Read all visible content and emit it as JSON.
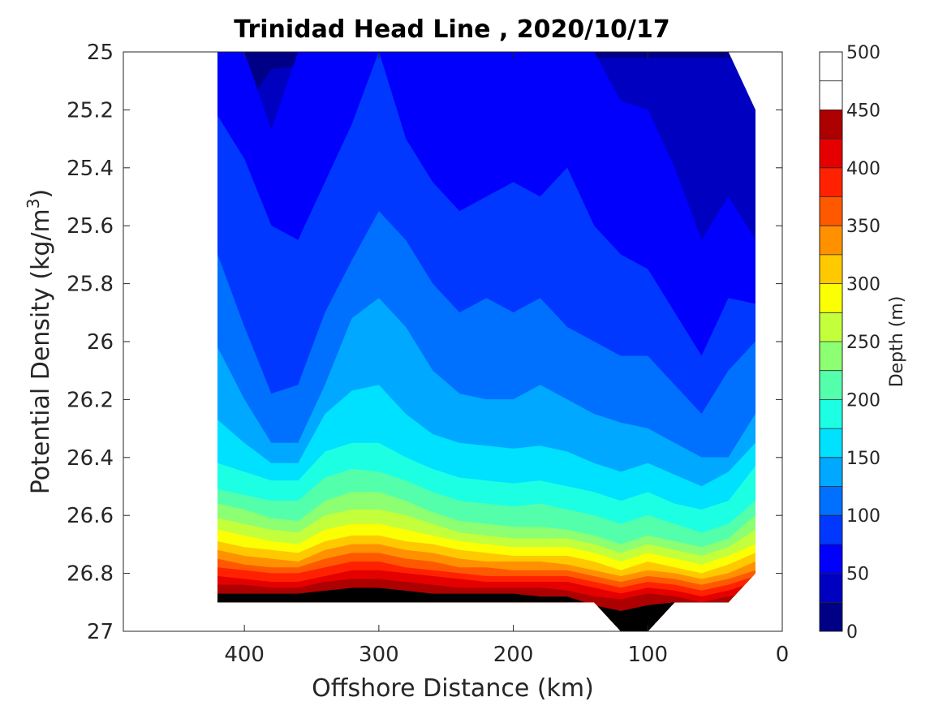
{
  "chart_data": {
    "type": "contour",
    "title": "Trinidad Head Line , 2020/10/17",
    "xlabel": "Offshore Distance (km)",
    "ylabel": "Potential Density (kg/m",
    "ylabel_sup": "3",
    "ylabel_close": ")",
    "xlim": [
      490,
      0
    ],
    "ylim": [
      25,
      27
    ],
    "x_reversed": true,
    "y_reversed": true,
    "xticks": [
      400,
      300,
      200,
      100,
      0
    ],
    "yticks": [
      "25",
      "25.2",
      "25.4",
      "25.6",
      "25.8",
      "26",
      "26.2",
      "26.4",
      "26.6",
      "26.8",
      "27"
    ],
    "colorbar": {
      "label": "Depth (m)",
      "ticks": [
        0,
        50,
        100,
        150,
        200,
        250,
        300,
        350,
        400,
        450,
        500
      ],
      "levels": [
        0,
        25,
        50,
        75,
        100,
        125,
        150,
        175,
        200,
        225,
        250,
        275,
        300,
        325,
        350,
        375,
        400,
        425,
        450,
        475,
        500
      ],
      "colormap": "jet",
      "colors": [
        "#000086",
        "#0000C0",
        "#0000FC",
        "#0038FF",
        "#0070FF",
        "#00A8FF",
        "#00E0FF",
        "#1CFFE3",
        "#54FFAB",
        "#8CFF73",
        "#C4FF3B",
        "#FCFF03",
        "#FFC900",
        "#FF9100",
        "#FF5900",
        "#FF2100",
        "#E50000",
        "#AD0000"
      ]
    },
    "grid": false,
    "distances_km": [
      420,
      400,
      380,
      360,
      340,
      320,
      300,
      280,
      260,
      240,
      220,
      200,
      180,
      160,
      140,
      120,
      100,
      80,
      60,
      40,
      20
    ],
    "contours": [
      {
        "level": 25,
        "sigma": [
          26.68,
          25.2,
          25.06,
          25.05,
          25.03,
          25.02,
          25.02,
          25.02,
          25.02,
          25.02,
          25.02,
          25.02,
          25.02,
          25.02,
          25.02,
          25.02,
          25.02,
          25.02,
          25.02,
          25.02,
          25.02
        ]
      },
      {
        "level": 50,
        "sigma": [
          25.0,
          25.0,
          25.27,
          25.0,
          25.0,
          25.0,
          25.0,
          25.0,
          25.0,
          25.0,
          25.0,
          25.0,
          25.0,
          25.0,
          25.0,
          25.17,
          25.2,
          25.4,
          25.65,
          25.5,
          25.65
        ]
      },
      {
        "level": 75,
        "sigma": [
          25.22,
          25.37,
          25.6,
          25.65,
          25.45,
          25.25,
          25.0,
          25.3,
          25.45,
          25.55,
          25.5,
          25.45,
          25.5,
          25.4,
          25.6,
          25.7,
          25.75,
          25.9,
          26.05,
          25.85,
          25.87
        ]
      },
      {
        "level": 100,
        "sigma": [
          25.7,
          25.95,
          26.18,
          26.15,
          25.9,
          25.72,
          25.55,
          25.65,
          25.8,
          25.9,
          25.85,
          25.9,
          25.85,
          25.95,
          26.0,
          26.05,
          26.05,
          26.15,
          26.25,
          26.1,
          26.0
        ]
      },
      {
        "level": 125,
        "sigma": [
          26.02,
          26.2,
          26.35,
          26.35,
          26.15,
          25.92,
          25.85,
          25.95,
          26.1,
          26.18,
          26.2,
          26.2,
          26.15,
          26.2,
          26.25,
          26.28,
          26.3,
          26.35,
          26.4,
          26.4,
          26.25
        ]
      },
      {
        "level": 150,
        "sigma": [
          26.27,
          26.35,
          26.42,
          26.42,
          26.25,
          26.17,
          26.15,
          26.25,
          26.32,
          26.35,
          26.36,
          26.37,
          26.36,
          26.38,
          26.42,
          26.45,
          26.42,
          26.46,
          26.5,
          26.45,
          26.35
        ]
      },
      {
        "level": 175,
        "sigma": [
          26.42,
          26.45,
          26.48,
          26.48,
          26.38,
          26.35,
          26.35,
          26.4,
          26.44,
          26.47,
          26.48,
          26.49,
          26.48,
          26.5,
          26.52,
          26.55,
          26.52,
          26.56,
          26.58,
          26.55,
          26.43
        ]
      },
      {
        "level": 200,
        "sigma": [
          26.51,
          26.53,
          26.55,
          26.55,
          26.47,
          26.44,
          26.45,
          26.48,
          26.52,
          26.55,
          26.56,
          26.57,
          26.56,
          26.58,
          26.6,
          26.63,
          26.6,
          26.63,
          26.66,
          26.63,
          26.55
        ]
      },
      {
        "level": 225,
        "sigma": [
          26.56,
          26.58,
          26.61,
          26.62,
          26.55,
          26.52,
          26.52,
          26.55,
          26.59,
          26.62,
          26.63,
          26.64,
          26.64,
          26.65,
          26.67,
          26.7,
          26.67,
          26.69,
          26.71,
          26.68,
          26.6
        ]
      },
      {
        "level": 250,
        "sigma": [
          26.61,
          26.63,
          26.65,
          26.66,
          26.6,
          26.58,
          26.58,
          26.6,
          26.63,
          26.66,
          26.67,
          26.68,
          26.68,
          26.68,
          26.7,
          26.73,
          26.7,
          26.72,
          26.74,
          26.71,
          26.65
        ]
      },
      {
        "level": 275,
        "sigma": [
          26.65,
          26.67,
          26.69,
          26.7,
          26.65,
          26.63,
          26.63,
          26.65,
          26.67,
          26.69,
          26.7,
          26.71,
          26.71,
          26.71,
          26.73,
          26.76,
          26.73,
          26.75,
          26.77,
          26.74,
          26.7
        ]
      },
      {
        "level": 300,
        "sigma": [
          26.69,
          26.71,
          26.72,
          26.73,
          26.69,
          26.67,
          26.67,
          26.69,
          26.7,
          26.72,
          26.73,
          26.74,
          26.74,
          26.74,
          26.76,
          26.79,
          26.76,
          26.78,
          26.8,
          26.77,
          26.73
        ]
      },
      {
        "level": 325,
        "sigma": [
          26.72,
          26.74,
          26.75,
          26.76,
          26.72,
          26.7,
          26.7,
          26.72,
          26.73,
          26.75,
          26.76,
          26.76,
          26.76,
          26.77,
          26.79,
          26.81,
          26.79,
          26.8,
          26.82,
          26.8,
          26.76
        ]
      },
      {
        "level": 350,
        "sigma": [
          26.75,
          26.77,
          26.78,
          26.78,
          26.75,
          26.73,
          26.73,
          26.75,
          26.76,
          26.78,
          26.78,
          26.79,
          26.79,
          26.79,
          26.81,
          26.83,
          26.81,
          26.82,
          26.84,
          26.82,
          26.79
        ]
      },
      {
        "level": 375,
        "sigma": [
          26.78,
          26.79,
          26.8,
          26.8,
          26.78,
          26.76,
          26.76,
          26.78,
          26.79,
          26.8,
          26.81,
          26.81,
          26.81,
          26.81,
          26.83,
          26.85,
          26.83,
          26.84,
          26.86,
          26.84,
          26.81
        ]
      },
      {
        "level": 400,
        "sigma": [
          26.81,
          26.82,
          26.83,
          26.83,
          26.81,
          26.79,
          26.79,
          26.8,
          26.81,
          26.82,
          26.83,
          26.83,
          26.83,
          26.83,
          26.85,
          26.87,
          26.85,
          26.86,
          26.88,
          26.86,
          26.83
        ]
      },
      {
        "level": 425,
        "sigma": [
          26.84,
          26.84,
          26.85,
          26.85,
          26.83,
          26.82,
          26.82,
          26.83,
          26.84,
          26.85,
          26.85,
          26.85,
          26.85,
          26.86,
          26.88,
          26.89,
          26.87,
          26.88,
          26.9,
          26.88,
          26.86
        ]
      },
      {
        "level": 450,
        "sigma": [
          26.87,
          26.87,
          26.87,
          26.87,
          26.86,
          26.85,
          26.85,
          26.86,
          26.87,
          26.87,
          26.87,
          26.87,
          26.88,
          26.88,
          26.91,
          26.93,
          26.91,
          26.9,
          26.9,
          26.9,
          26.88
        ]
      },
      {
        "level": 475,
        "sigma": [
          26.89,
          26.89,
          26.89,
          26.89,
          26.88,
          26.88,
          26.88,
          26.89,
          26.89,
          26.89,
          26.9,
          26.9,
          26.9,
          26.9,
          26.93,
          26.96,
          26.95,
          26.9,
          26.9,
          26.9,
          26.9
        ]
      }
    ],
    "data_extent": {
      "bottom_sigma": [
        26.9,
        26.9,
        26.9,
        26.9,
        26.9,
        26.9,
        26.9,
        26.9,
        26.9,
        26.9,
        26.9,
        26.9,
        26.9,
        26.9,
        26.9,
        27.0,
        27.0,
        26.9,
        26.9,
        26.9,
        26.8
      ],
      "top_sigma": [
        25.0,
        25.0,
        25.0,
        25.0,
        25.0,
        25.0,
        25.0,
        25.0,
        25.0,
        25.0,
        25.0,
        25.0,
        25.0,
        25.0,
        25.0,
        25.0,
        25.0,
        25.0,
        25.0,
        25.0,
        25.2
      ]
    }
  }
}
